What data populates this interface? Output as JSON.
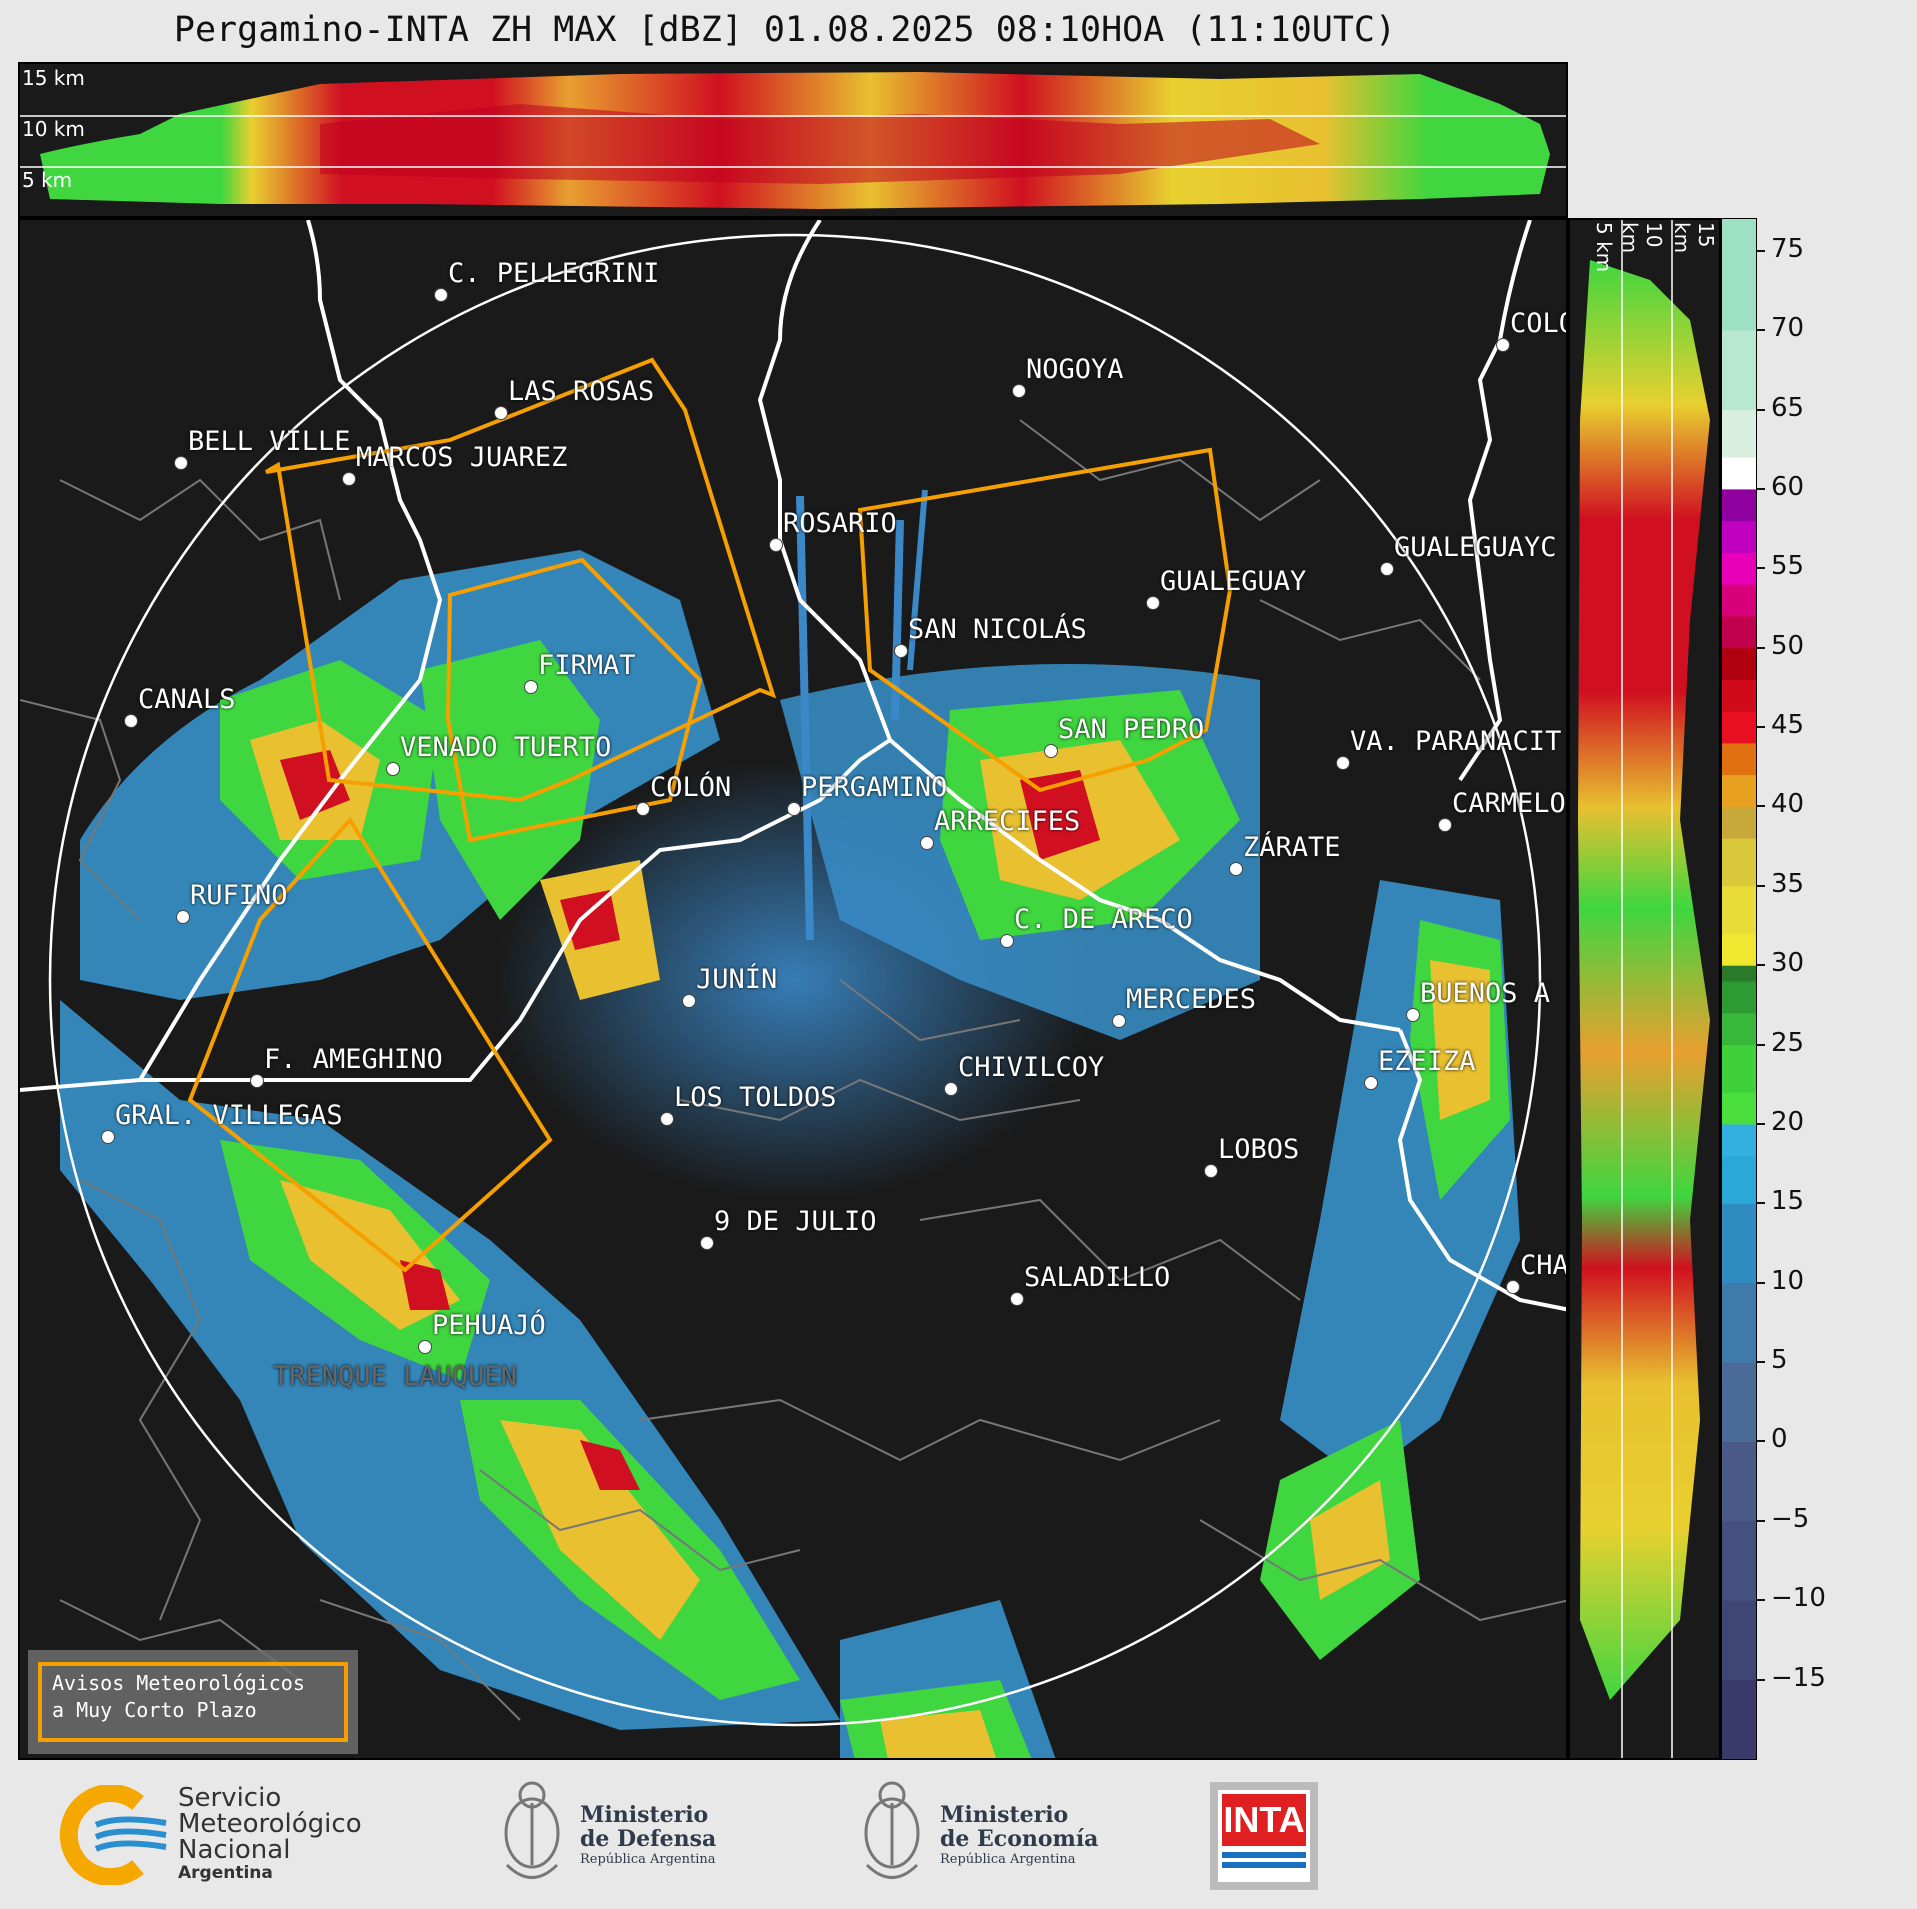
{
  "title": "Pergamino-INTA ZH MAX [dBZ] 01.08.2025 08:10HOA (11:10UTC)",
  "top_panel_heights": [
    "15 km",
    "10 km",
    "5 km"
  ],
  "side_panel_heights": [
    "5 km",
    "10 km",
    "15 km"
  ],
  "colorbar": {
    "ticks": [
      "75",
      "70",
      "65",
      "60",
      "55",
      "50",
      "45",
      "40",
      "35",
      "30",
      "25",
      "20",
      "15",
      "10",
      "5",
      "0",
      "−5",
      "−10",
      "−15"
    ],
    "range": [
      -20,
      77
    ]
  },
  "cities": [
    {
      "name": "C. PELLEGRINI"
    },
    {
      "name": "LAS ROSAS"
    },
    {
      "name": "BELL VILLE"
    },
    {
      "name": "MARCOS JUAREZ"
    },
    {
      "name": "ROSARIO"
    },
    {
      "name": "NOGOYA"
    },
    {
      "name": "COLO"
    },
    {
      "name": "GUALEGUAYC"
    },
    {
      "name": "GUALEGUAY"
    },
    {
      "name": "SAN NICOLÁS"
    },
    {
      "name": "FIRMAT"
    },
    {
      "name": "CANALS"
    },
    {
      "name": "VENADO TUERTO"
    },
    {
      "name": "SAN PEDRO"
    },
    {
      "name": "VA. PARANACIT"
    },
    {
      "name": "COLÓN"
    },
    {
      "name": "PERGAMINO"
    },
    {
      "name": "CARMELO"
    },
    {
      "name": "ARRECIFES"
    },
    {
      "name": "ZÁRATE"
    },
    {
      "name": "RUFINO"
    },
    {
      "name": "C. DE ARECO"
    },
    {
      "name": "JUNÍN"
    },
    {
      "name": "MERCEDES"
    },
    {
      "name": "BUENOS A"
    },
    {
      "name": "F. AMEGHINO"
    },
    {
      "name": "CHIVILCOY"
    },
    {
      "name": "EZEIZA"
    },
    {
      "name": "GRAL. VILLEGAS"
    },
    {
      "name": "LOS TOLDOS"
    },
    {
      "name": "LOBOS"
    },
    {
      "name": "9 DE JULIO"
    },
    {
      "name": "SALADILLO"
    },
    {
      "name": "CHA"
    },
    {
      "name": "PEHUAJÓ"
    },
    {
      "name": "TRENQUE LAUQUEN"
    }
  ],
  "legend": {
    "line1": "Avisos Meteorológicos",
    "line2": "a Muy Corto Plazo"
  },
  "logos": {
    "smn": [
      "Servicio",
      "Meteorológico",
      "Nacional",
      "Argentina"
    ],
    "defensa": [
      "Ministerio",
      "de Defensa",
      "República Argentina"
    ],
    "economia": [
      "Ministerio",
      "de Economía",
      "República Argentina"
    ],
    "inta": "INTA"
  },
  "colors": {
    "background": "#1a1a1a",
    "warning_polygon": "#f5a000",
    "range_ring": "#ffffff"
  }
}
